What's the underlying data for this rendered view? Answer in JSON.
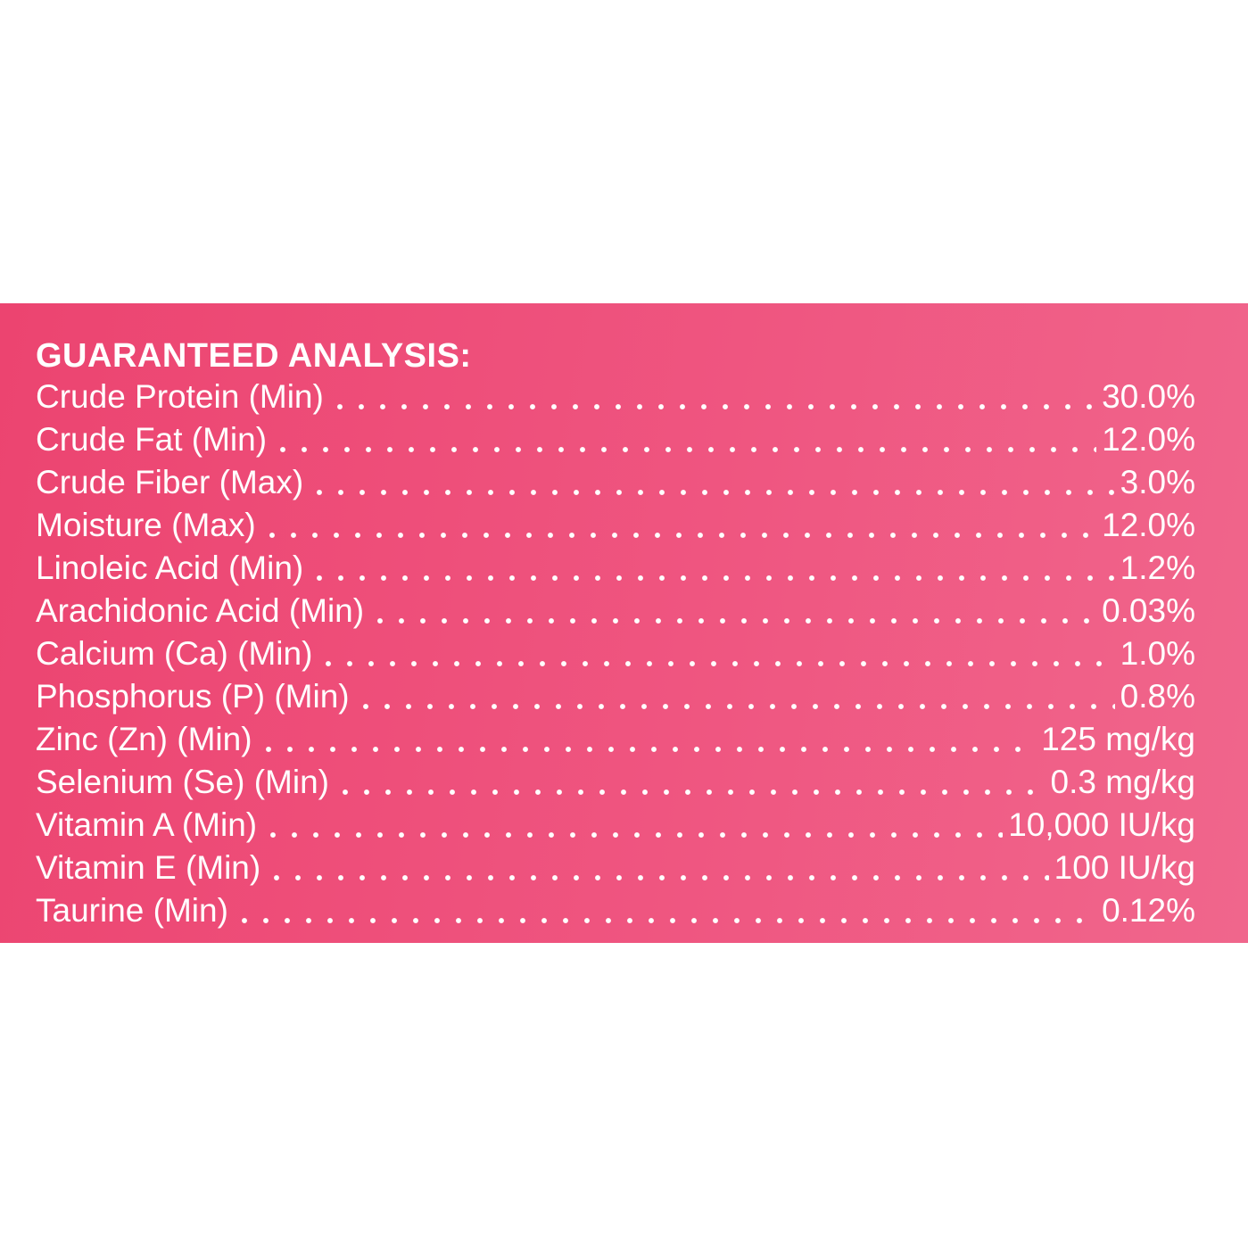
{
  "colors": {
    "band": "#ef5580",
    "text": "#ffffff",
    "background": "#ffffff"
  },
  "title": "GUARANTEED ANALYSIS:",
  "rows": [
    {
      "label": "Crude Protein (Min)",
      "value": "30.0%"
    },
    {
      "label": "Crude Fat (Min)",
      "value": "12.0%"
    },
    {
      "label": "Crude Fiber (Max)",
      "value": "3.0%"
    },
    {
      "label": "Moisture (Max)",
      "value": "12.0%"
    },
    {
      "label": "Linoleic Acid (Min)",
      "value": "1.2%"
    },
    {
      "label": "Arachidonic Acid (Min)",
      "value": "0.03%"
    },
    {
      "label": "Calcium (Ca) (Min)",
      "value": "1.0%"
    },
    {
      "label": "Phosphorus (P) (Min)",
      "value": "0.8%"
    },
    {
      "label": "Zinc (Zn) (Min)",
      "value": "125 mg/kg"
    },
    {
      "label": "Selenium (Se) (Min)",
      "value": "0.3 mg/kg"
    },
    {
      "label": "Vitamin A (Min)",
      "value": "10,000 IU/kg"
    },
    {
      "label": "Vitamin E (Min)",
      "value": "100 IU/kg"
    },
    {
      "label": "Taurine (Min)",
      "value": "0.12%"
    }
  ]
}
